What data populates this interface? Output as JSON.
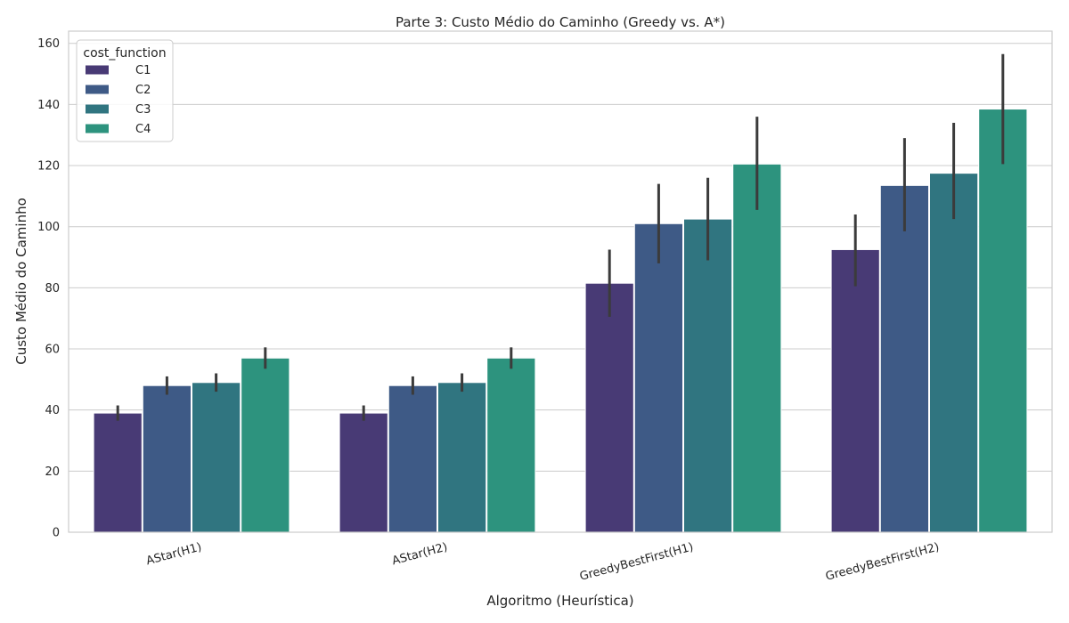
{
  "chart_data": {
    "type": "bar",
    "title": "Parte 3: Custo Médio do Caminho (Greedy vs. A*)",
    "xlabel": "Algoritmo (Heurística)",
    "ylabel": "Custo Médio do Caminho",
    "categories": [
      "AStar(H1)",
      "AStar(H2)",
      "GreedyBestFirst(H1)",
      "GreedyBestFirst(H2)"
    ],
    "ylim": [
      0,
      164
    ],
    "yticks": [
      0,
      20,
      40,
      60,
      80,
      100,
      120,
      140,
      160
    ],
    "grid": true,
    "legend": {
      "title": "cost_function",
      "placement": "top-left"
    },
    "series": [
      {
        "name": "C1",
        "color": "#483a75",
        "values": [
          39,
          39,
          81.5,
          92.5
        ],
        "ci_low": [
          36.5,
          36.5,
          70.5,
          80.5
        ],
        "ci_high": [
          41.5,
          41.5,
          92.5,
          104
        ]
      },
      {
        "name": "C2",
        "color": "#3e5a86",
        "values": [
          48,
          48,
          101,
          113.5
        ],
        "ci_low": [
          45,
          45,
          88,
          98.5
        ],
        "ci_high": [
          51,
          51,
          114,
          129
        ]
      },
      {
        "name": "C3",
        "color": "#307580",
        "values": [
          49,
          49,
          102.5,
          117.5
        ],
        "ci_low": [
          46,
          46,
          89,
          102.5
        ],
        "ci_high": [
          52,
          52,
          116,
          134
        ]
      },
      {
        "name": "C4",
        "color": "#2d937e",
        "values": [
          57,
          57,
          120.5,
          138.5
        ],
        "ci_low": [
          53.5,
          53.5,
          105.5,
          120.5
        ],
        "ci_high": [
          60.5,
          60.5,
          136,
          156.5
        ]
      }
    ]
  }
}
